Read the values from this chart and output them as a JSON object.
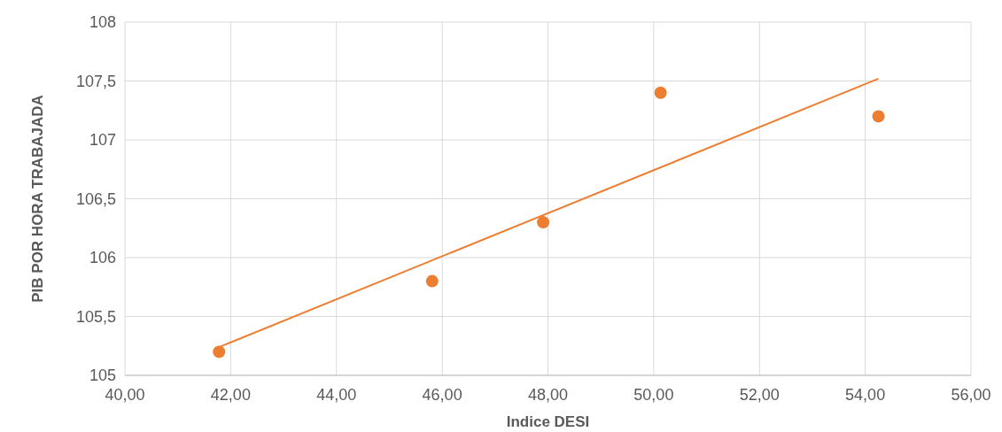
{
  "chart_data": {
    "type": "scatter",
    "xlabel": "Indice DESI",
    "ylabel": "PIB POR HORA TRABAJADA",
    "xlim": [
      40,
      56
    ],
    "xticks": [
      {
        "value": 40,
        "label": "40,00"
      },
      {
        "value": 42,
        "label": "42,00"
      },
      {
        "value": 44,
        "label": "44,00"
      },
      {
        "value": 46,
        "label": "46,00"
      },
      {
        "value": 48,
        "label": "48,00"
      },
      {
        "value": 50,
        "label": "50,00"
      },
      {
        "value": 52,
        "label": "52,00"
      },
      {
        "value": 54,
        "label": "54,00"
      },
      {
        "value": 56,
        "label": "56,00"
      }
    ],
    "ylim": [
      105,
      108
    ],
    "yticks": [
      105,
      {
        "value": 105.5,
        "label": "105,5"
      },
      106,
      {
        "value": 106.5,
        "label": "106,5"
      },
      107,
      {
        "value": 107.5,
        "label": "107,5"
      },
      108
    ],
    "grid": true,
    "marker": "circle",
    "series": [
      {
        "color": "#ed7d31",
        "x": [
          41.78,
          45.81,
          47.91,
          50.13,
          54.25
        ],
        "values": [
          105.2,
          105.8,
          106.3,
          107.4,
          107.2
        ]
      },
      {
        "type": "line",
        "color": "#ed7d31",
        "marker": "none",
        "x": [
          41.78,
          54.25
        ],
        "values": [
          105.24,
          107.52
        ]
      }
    ]
  }
}
